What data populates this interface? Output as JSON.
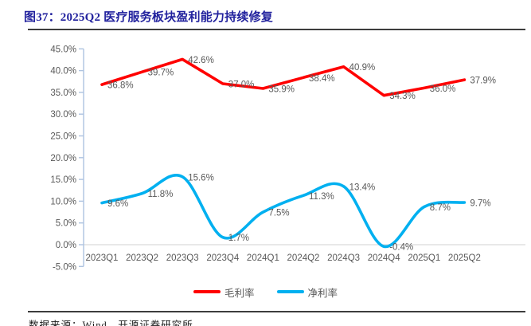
{
  "figure": {
    "title": "图37：2025Q2 医疗服务板块盈利能力持续修复",
    "source": "数据来源：Wind，开源证券研究所"
  },
  "chart_data": {
    "type": "line",
    "title": "2025Q2 医疗服务板块盈利能力持续修复",
    "categories": [
      "2023Q1",
      "2023Q2",
      "2023Q3",
      "2023Q4",
      "2024Q1",
      "2024Q2",
      "2024Q3",
      "2024Q4",
      "2025Q1",
      "2025Q2"
    ],
    "series": [
      {
        "name": "毛利率",
        "color": "#FF0000",
        "smooth": false,
        "values": [
          36.8,
          39.7,
          42.6,
          37.0,
          35.9,
          38.4,
          40.9,
          34.3,
          36.0,
          37.9
        ],
        "labels": [
          "36.8%",
          "39.7%",
          "42.6%",
          "37.0%",
          "35.9%",
          "38.4%",
          "40.9%",
          "34.3%",
          "36.0%",
          "37.9%"
        ]
      },
      {
        "name": "净利率",
        "color": "#00B0F0",
        "smooth": true,
        "values": [
          9.6,
          11.8,
          15.6,
          1.7,
          7.5,
          11.3,
          13.4,
          -0.4,
          8.7,
          9.7
        ],
        "labels": [
          "9.6%",
          "11.8%",
          "15.6%",
          "1.7%",
          "7.5%",
          "11.3%",
          "13.4%",
          "-0.4%",
          "8.7%",
          "9.7%"
        ]
      }
    ],
    "xlabel": "",
    "ylabel": "",
    "ylim": [
      -5,
      45
    ],
    "ytick_step": 5,
    "ytick_labels": [
      "45.0%",
      "40.0%",
      "35.0%",
      "30.0%",
      "25.0%",
      "20.0%",
      "15.0%",
      "10.0%",
      "5.0%",
      "0.0%",
      "-5.0%"
    ],
    "grid": "zero-line-only",
    "legend_position": "bottom",
    "colors": {
      "axis_line": "#AEC3E0",
      "zero_line": "#D9D9D9",
      "tick_label": "#595959",
      "data_label": "#595959"
    }
  }
}
